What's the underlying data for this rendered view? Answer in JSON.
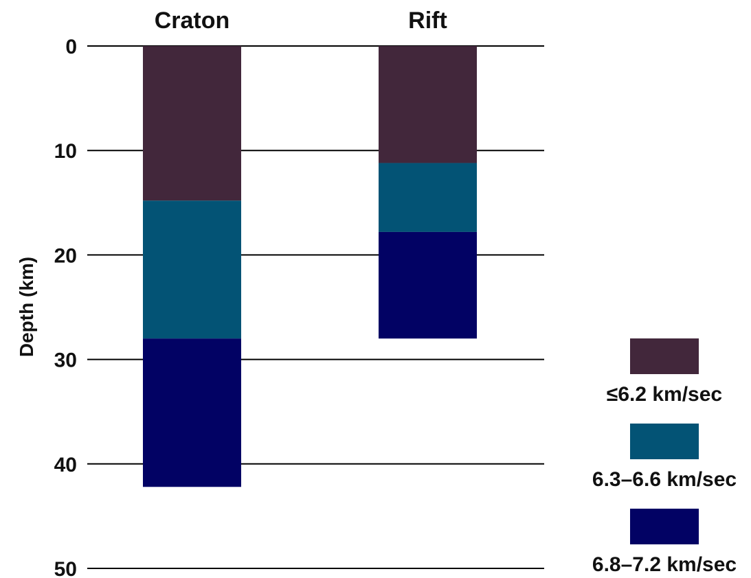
{
  "chart_data": {
    "type": "bar",
    "orientation": "vertical-stacked-depth",
    "categories": [
      "Craton",
      "Rift"
    ],
    "ylabel": "Depth (km)",
    "ylim": [
      0,
      50
    ],
    "yticks": [
      0,
      10,
      20,
      30,
      40,
      50
    ],
    "y_inverted": true,
    "grid": true,
    "legend_position": "bottom-right",
    "series": [
      {
        "name": "≤6.2 km/sec",
        "color": "#42273b",
        "values": [
          [
            0,
            14.8
          ],
          [
            0,
            11.2
          ]
        ]
      },
      {
        "name": "6.3–6.6 km/sec",
        "color": "#035375",
        "values": [
          [
            14.8,
            28
          ],
          [
            11.2,
            17.8
          ]
        ]
      },
      {
        "name": "6.8–7.2 km/sec",
        "color": "#020264",
        "values": [
          [
            28,
            42.2
          ],
          [
            17.8,
            28
          ]
        ]
      }
    ]
  }
}
